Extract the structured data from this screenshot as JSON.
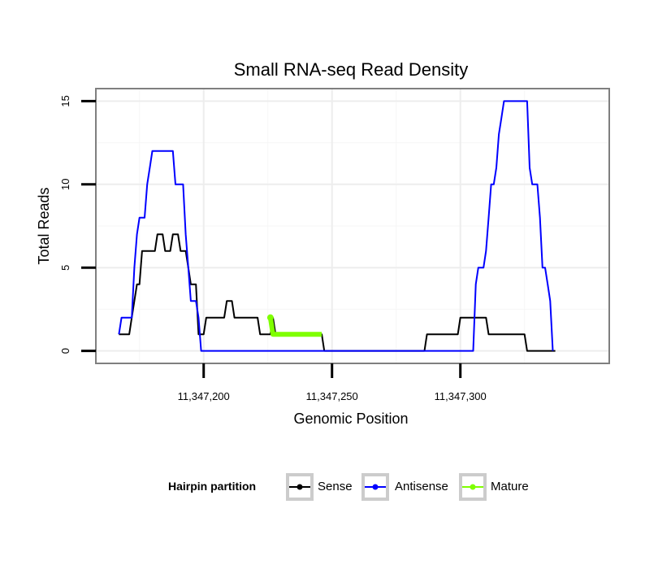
{
  "chart_data": {
    "type": "line",
    "title": "Small RNA-seq Read Density",
    "xlabel": "Genomic Position",
    "ylabel": "Total Reads",
    "xlim": [
      11347158,
      11347358
    ],
    "ylim": [
      -0.75,
      15.75
    ],
    "x_ticks": [
      11347200,
      11347250,
      11347300
    ],
    "x_tick_labels": [
      "11,347,200",
      "11,347,250",
      "11,347,300"
    ],
    "y_ticks": [
      0,
      5,
      10,
      15
    ],
    "y_tick_labels": [
      "0",
      "5",
      "10",
      "15"
    ],
    "grid": true,
    "legend": {
      "title": "Hairpin partition",
      "position": "bottom",
      "items": [
        "Sense",
        "Antisense",
        "Mature"
      ]
    },
    "series": [
      {
        "name": "Sense",
        "color": "#000000",
        "points": [
          [
            11347167,
            1
          ],
          [
            11347171,
            1
          ],
          [
            11347172,
            2
          ],
          [
            11347173,
            3
          ],
          [
            11347174,
            4
          ],
          [
            11347175,
            4
          ],
          [
            11347176,
            6
          ],
          [
            11347181,
            6
          ],
          [
            11347182,
            7
          ],
          [
            11347184,
            7
          ],
          [
            11347185,
            6
          ],
          [
            11347187,
            6
          ],
          [
            11347188,
            7
          ],
          [
            11347190,
            7
          ],
          [
            11347191,
            6
          ],
          [
            11347193,
            6
          ],
          [
            11347194,
            5
          ],
          [
            11347195,
            4
          ],
          [
            11347197,
            4
          ],
          [
            11347198,
            1
          ],
          [
            11347200,
            1
          ],
          [
            11347201,
            2
          ],
          [
            11347208,
            2
          ],
          [
            11347209,
            3
          ],
          [
            11347211,
            3
          ],
          [
            11347212,
            2
          ],
          [
            11347221,
            2
          ],
          [
            11347222,
            1
          ],
          [
            11347226,
            1
          ],
          [
            11347227,
            2
          ],
          [
            11347228,
            1
          ],
          [
            11347246,
            1
          ],
          [
            11347247,
            0
          ],
          [
            11347286,
            0
          ],
          [
            11347287,
            1
          ],
          [
            11347299,
            1
          ],
          [
            11347300,
            2
          ],
          [
            11347310,
            2
          ],
          [
            11347311,
            1
          ],
          [
            11347325,
            1
          ],
          [
            11347326,
            0
          ],
          [
            11347337,
            0
          ]
        ]
      },
      {
        "name": "Antisense",
        "color": "#0000ff",
        "points": [
          [
            11347167,
            1
          ],
          [
            11347168,
            2
          ],
          [
            11347172,
            2
          ],
          [
            11347173,
            5
          ],
          [
            11347174,
            7
          ],
          [
            11347175,
            8
          ],
          [
            11347177,
            8
          ],
          [
            11347178,
            10
          ],
          [
            11347179,
            11
          ],
          [
            11347180,
            12
          ],
          [
            11347188,
            12
          ],
          [
            11347189,
            10
          ],
          [
            11347192,
            10
          ],
          [
            11347193,
            7
          ],
          [
            11347194,
            5
          ],
          [
            11347195,
            3
          ],
          [
            11347197,
            3
          ],
          [
            11347198,
            2
          ],
          [
            11347199,
            0
          ],
          [
            11347305,
            0
          ],
          [
            11347306,
            4
          ],
          [
            11347307,
            5
          ],
          [
            11347309,
            5
          ],
          [
            11347310,
            6
          ],
          [
            11347311,
            8
          ],
          [
            11347312,
            10
          ],
          [
            11347313,
            10
          ],
          [
            11347314,
            11
          ],
          [
            11347315,
            13
          ],
          [
            11347316,
            14
          ],
          [
            11347317,
            15
          ],
          [
            11347326,
            15
          ],
          [
            11347327,
            11
          ],
          [
            11347328,
            10
          ],
          [
            11347330,
            10
          ],
          [
            11347331,
            8
          ],
          [
            11347332,
            5
          ],
          [
            11347333,
            5
          ],
          [
            11347334,
            4
          ],
          [
            11347335,
            3
          ],
          [
            11347336,
            0
          ]
        ]
      },
      {
        "name": "Mature",
        "color": "#7fff00",
        "points": [
          [
            11347226,
            2
          ],
          [
            11347227,
            1
          ],
          [
            11347246,
            1
          ]
        ]
      }
    ]
  }
}
